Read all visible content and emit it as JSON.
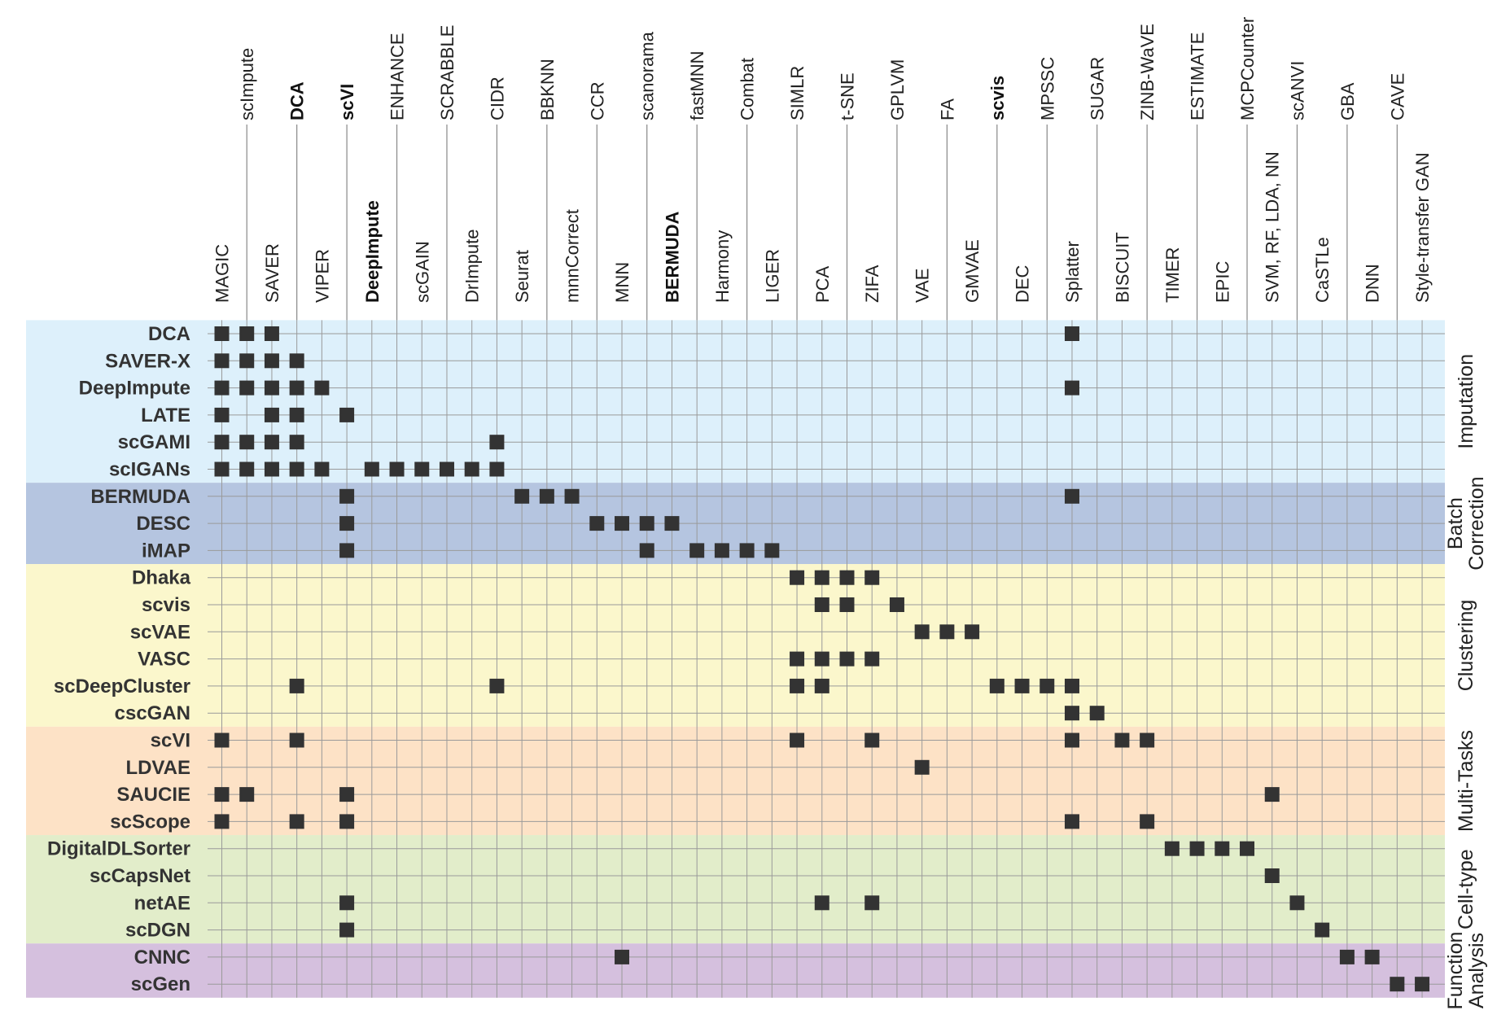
{
  "chart_data": {
    "type": "table",
    "title": "",
    "top_labels": [
      "scImpute",
      "DCA",
      "scVI",
      "ENHANCE",
      "SCRABBLE",
      "CIDR",
      "BBKNN",
      "CCR",
      "scanorama",
      "fastMNN",
      "Combat",
      "SIMLR",
      "t-SNE",
      "GPLVM",
      "FA",
      "scvis",
      "MPSSC",
      "SUGAR",
      "ZINB-WaVE",
      "ESTIMATE",
      "MCPCounter",
      "scANVI",
      "GBA",
      "CAVE"
    ],
    "bottom_labels": [
      "MAGIC",
      "SAVER",
      "VIPER",
      "DeepImpute",
      "scGAIN",
      "DrImpute",
      "Seurat",
      "mnnCorrect",
      "MNN",
      "BERMUDA",
      "Harmony",
      "LIGER",
      "PCA",
      "ZIFA",
      "VAE",
      "GMVAE",
      "DEC",
      "Splatter",
      "BISCUIT",
      "TIMER",
      "EPIC",
      "SVM, RF, LDA, NN",
      "CaSTLe",
      "DNN",
      "Style-transfer GAN"
    ],
    "columns": [
      "MAGIC",
      "scImpute",
      "SAVER",
      "DCA",
      "VIPER",
      "scVI",
      "DeepImpute",
      "ENHANCE",
      "scGAIN",
      "SCRABBLE",
      "DrImpute",
      "CIDR",
      "Seurat",
      "BBKNN",
      "mnnCorrect",
      "CCR",
      "MNN",
      "scanorama",
      "BERMUDA",
      "fastMNN",
      "Harmony",
      "Combat",
      "LIGER",
      "SIMLR",
      "PCA",
      "t-SNE",
      "ZIFA",
      "GPLVM",
      "VAE",
      "FA",
      "GMVAE",
      "scvis",
      "DEC",
      "MPSSC",
      "Splatter",
      "SUGAR",
      "BISCUIT",
      "ZINB-WaVE",
      "TIMER",
      "ESTIMATE",
      "EPIC",
      "MCPCounter",
      "SVM, RF, LDA, NN",
      "scANVI",
      "CaSTLe",
      "GBA",
      "DNN",
      "CAVE",
      "Style-transfer GAN"
    ],
    "bold_columns": [
      "DCA",
      "scVI",
      "DeepImpute",
      "BERMUDA",
      "scvis"
    ],
    "groups": [
      {
        "name": "Imputation",
        "color": "#ddf0fb",
        "rows": [
          {
            "name": "DCA",
            "marks": [
              0,
              1,
              2,
              34
            ]
          },
          {
            "name": "SAVER-X",
            "marks": [
              0,
              1,
              2,
              3
            ]
          },
          {
            "name": "DeepImpute",
            "marks": [
              0,
              1,
              2,
              3,
              4,
              34
            ]
          },
          {
            "name": "LATE",
            "marks": [
              0,
              2,
              3,
              5
            ]
          },
          {
            "name": "scGAMI",
            "marks": [
              0,
              1,
              2,
              3,
              11
            ]
          },
          {
            "name": "scIGANs",
            "marks": [
              0,
              1,
              2,
              3,
              4,
              6,
              7,
              8,
              9,
              10,
              11
            ]
          }
        ]
      },
      {
        "name": "Batch Correction",
        "color": "#b5c5e0",
        "rows": [
          {
            "name": "BERMUDA",
            "marks": [
              5,
              12,
              13,
              14,
              34
            ]
          },
          {
            "name": "DESC",
            "marks": [
              5,
              15,
              16,
              17,
              18
            ]
          },
          {
            "name": "iMAP",
            "marks": [
              5,
              17,
              19,
              20,
              21,
              22
            ]
          }
        ]
      },
      {
        "name": "Clustering",
        "color": "#fbf7cc",
        "rows": [
          {
            "name": "Dhaka",
            "marks": [
              23,
              24,
              25,
              26
            ]
          },
          {
            "name": "scvis",
            "marks": [
              24,
              25,
              27
            ]
          },
          {
            "name": "scVAE",
            "marks": [
              28,
              29,
              30
            ]
          },
          {
            "name": "VASC",
            "marks": [
              23,
              24,
              25,
              26
            ]
          },
          {
            "name": "scDeepCluster",
            "marks": [
              3,
              11,
              23,
              24,
              31,
              32,
              33,
              34
            ]
          },
          {
            "name": "cscGAN",
            "marks": [
              34,
              35
            ]
          }
        ]
      },
      {
        "name": "Multi-Tasks",
        "color": "#fde2c6",
        "rows": [
          {
            "name": "scVI",
            "marks": [
              0,
              3,
              23,
              26,
              34,
              36,
              37
            ]
          },
          {
            "name": "LDVAE",
            "marks": [
              28
            ]
          },
          {
            "name": "SAUCIE",
            "marks": [
              0,
              1,
              5,
              42
            ]
          },
          {
            "name": "scScope",
            "marks": [
              0,
              3,
              5,
              34,
              37
            ]
          }
        ]
      },
      {
        "name": "Cell-type",
        "color": "#e2edca",
        "rows": [
          {
            "name": "DigitalDLSorter",
            "marks": [
              38,
              39,
              40,
              41
            ]
          },
          {
            "name": "scCapsNet",
            "marks": [
              42
            ]
          },
          {
            "name": "netAE",
            "marks": [
              5,
              24,
              26,
              43
            ]
          },
          {
            "name": "scDGN",
            "marks": [
              5,
              44
            ]
          }
        ]
      },
      {
        "name": "Function Analysis",
        "color": "#d5c0de",
        "rows": [
          {
            "name": "CNNC",
            "marks": [
              16,
              45,
              46
            ]
          },
          {
            "name": "scGen",
            "marks": [
              47,
              48
            ]
          }
        ]
      }
    ],
    "grid": true,
    "marker": "filled-square",
    "marker_color": "#333333"
  }
}
